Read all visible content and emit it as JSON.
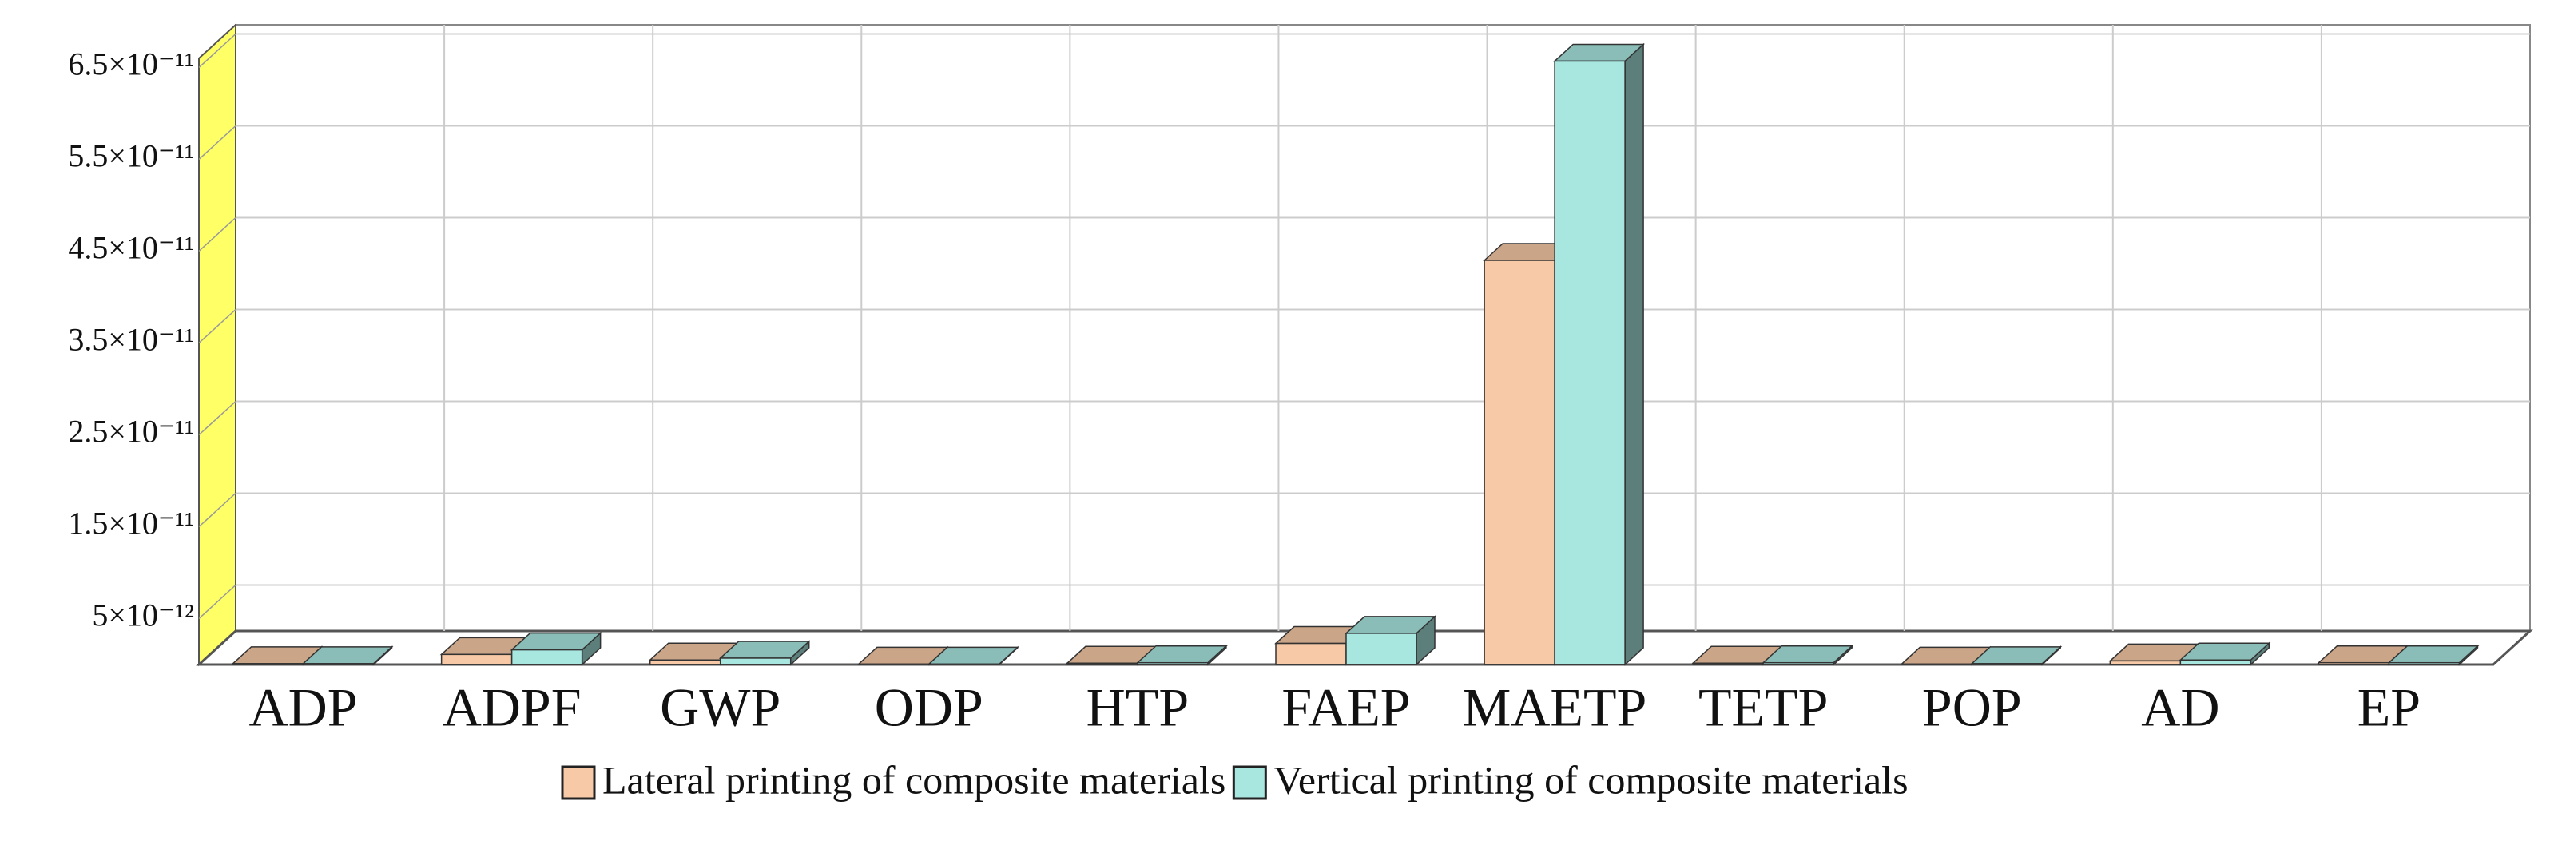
{
  "chart_data": {
    "type": "bar3d",
    "categories": [
      "ADP",
      "ADPF",
      "GWP",
      "ODP",
      "HTP",
      "FAEP",
      "MAETP",
      "TETP",
      "POP",
      "AD",
      "EP"
    ],
    "series": [
      {
        "name": "Lateral printing of composite materials",
        "color": "#f8c9a6",
        "values": [
          1e-13,
          1.1e-12,
          5e-13,
          5e-14,
          1.5e-13,
          2.3e-12,
          4.4e-11,
          1.5e-13,
          5e-14,
          4e-13,
          2e-13
        ]
      },
      {
        "name": "Vertical printing of composite materials",
        "color": "#a8e6e0",
        "values": [
          1e-13,
          1.6e-12,
          7e-13,
          5e-14,
          2e-13,
          3.4e-12,
          6.57e-11,
          2e-13,
          1e-13,
          5e-13,
          2e-13
        ]
      }
    ],
    "ylim": [
      0,
      6.6e-11
    ],
    "yticks": [
      {
        "value": 5e-12,
        "label": "5×10⁻¹²"
      },
      {
        "value": 1.5e-11,
        "label": "1.5×10⁻¹¹"
      },
      {
        "value": 2.5e-11,
        "label": "2.5×10⁻¹¹"
      },
      {
        "value": 3.5e-11,
        "label": "3.5×10⁻¹¹"
      },
      {
        "value": 4.5e-11,
        "label": "4.5×10⁻¹¹"
      },
      {
        "value": 5.5e-11,
        "label": "5.5×10⁻¹¹"
      },
      {
        "value": 6.5e-11,
        "label": "6.5×10⁻¹¹"
      }
    ],
    "grid": true
  }
}
